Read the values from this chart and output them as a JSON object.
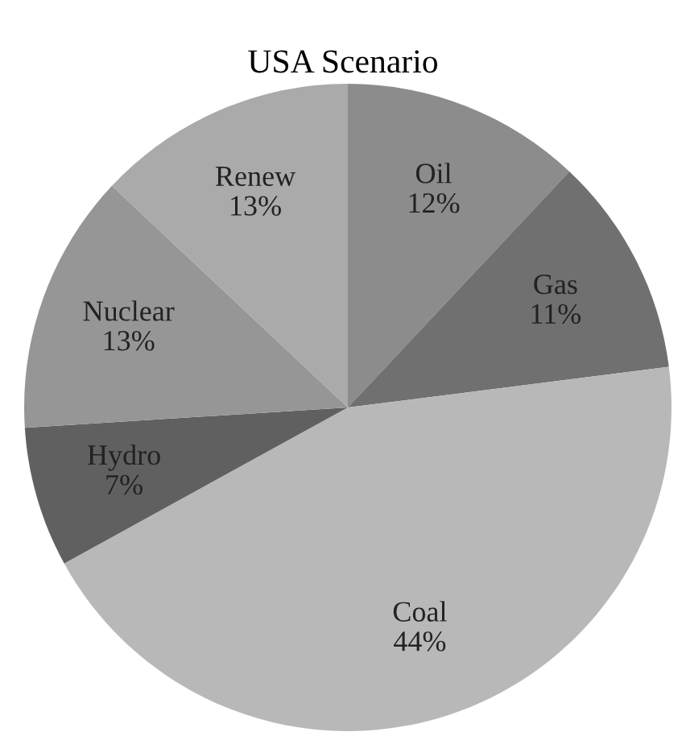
{
  "chart_data": {
    "type": "pie",
    "title": "USA Scenario",
    "categories": [
      "Oil",
      "Gas",
      "Coal",
      "Hydro",
      "Nuclear",
      "Renew"
    ],
    "values": [
      12,
      11,
      44,
      7,
      13,
      13
    ],
    "value_labels": [
      "12%",
      "11%",
      "44%",
      "7%",
      "13%",
      "13%"
    ],
    "colors": [
      "#8c8c8c",
      "#707070",
      "#b8b8b8",
      "#606060",
      "#969696",
      "#aaaaaa"
    ]
  }
}
